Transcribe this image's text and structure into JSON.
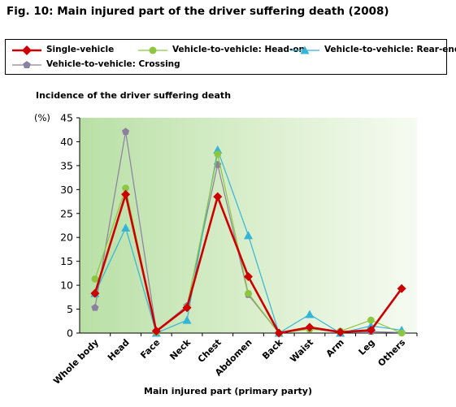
{
  "figure": {
    "title": "Fig. 10: Main injured part of the driver suffering death (2008)",
    "subtitle": "Incidence of the driver suffering death"
  },
  "chart_data": {
    "type": "line",
    "xlabel": "Main injured part (primary party)",
    "ylabel": "(%)",
    "ylim": [
      0,
      45
    ],
    "yticks": [
      0,
      5,
      10,
      15,
      20,
      25,
      30,
      35,
      40,
      45
    ],
    "grid": false,
    "legend_position": "top",
    "categories": [
      "Whole body",
      "Head",
      "Face",
      "Neck",
      "Chest",
      "Abdomen",
      "Back",
      "Waist",
      "Arm",
      "Leg",
      "Others"
    ],
    "series": [
      {
        "name": "Single-vehicle",
        "color": "#cc0000",
        "marker": "diamond",
        "values": [
          8.3,
          29.0,
          0.4,
          5.3,
          28.5,
          11.8,
          0.0,
          1.2,
          0.2,
          0.6,
          9.3
        ]
      },
      {
        "name": "Vehicle-to-vehicle: Head-on",
        "color": "#8dc63f",
        "marker": "circle",
        "values": [
          11.3,
          30.3,
          0.2,
          5.4,
          37.4,
          8.3,
          0.0,
          0.8,
          0.4,
          2.7,
          0.0
        ]
      },
      {
        "name": "Vehicle-to-vehicle: Rear-end",
        "color": "#33b5d8",
        "marker": "triangle",
        "values": [
          8.3,
          22.0,
          0.0,
          2.7,
          38.3,
          20.4,
          0.0,
          3.9,
          0.0,
          1.5,
          0.6
        ]
      },
      {
        "name": "Vehicle-to-vehicle: Crossing",
        "color": "#8c7fa0",
        "marker": "pentagon",
        "values": [
          5.3,
          42.1,
          0.5,
          5.7,
          35.2,
          8.0,
          0.0,
          0.9,
          0.2,
          0.3,
          0.1
        ]
      }
    ]
  }
}
